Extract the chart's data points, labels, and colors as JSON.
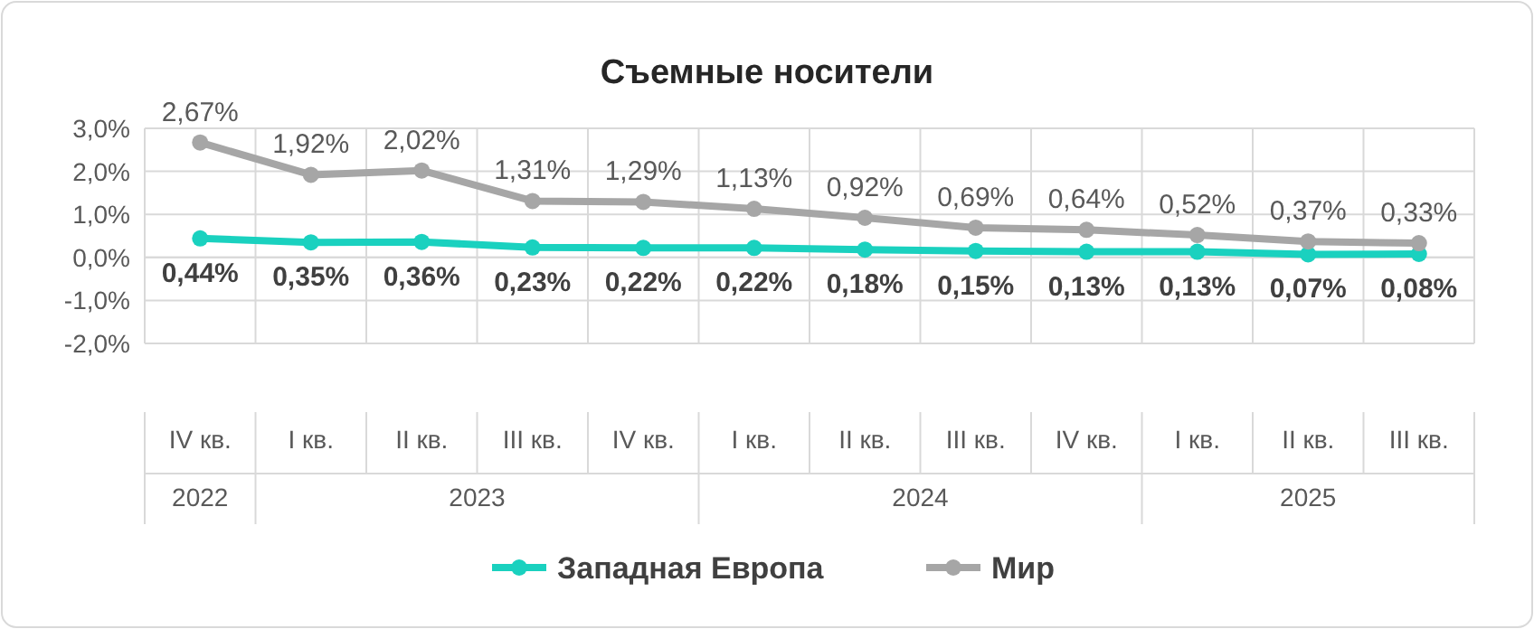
{
  "chart_data": {
    "type": "line",
    "title": "Съемные носители",
    "categories": [
      "IV кв.",
      "I кв.",
      "II кв.",
      "III кв.",
      "IV кв.",
      "I кв.",
      "II кв.",
      "III кв.",
      "IV кв.",
      "I кв.",
      "II кв.",
      "III кв."
    ],
    "annotations": [
      "2022",
      "2023",
      "2024",
      "2025"
    ],
    "series": [
      {
        "name": "Западная Европа",
        "color": "#1ad1bf",
        "values": [
          0.44,
          0.35,
          0.36,
          0.23,
          0.22,
          0.22,
          0.18,
          0.15,
          0.13,
          0.13,
          0.07,
          0.08
        ],
        "value_labels": [
          "0,44%",
          "0,35%",
          "0,36%",
          "0,23%",
          "0,22%",
          "0,22%",
          "0,18%",
          "0,15%",
          "0,13%",
          "0,13%",
          "0,07%",
          "0,08%"
        ]
      },
      {
        "name": "Мир",
        "color": "#a6a6a6",
        "values": [
          2.67,
          1.92,
          2.02,
          1.31,
          1.29,
          1.13,
          0.92,
          0.69,
          0.64,
          0.52,
          0.37,
          0.33
        ],
        "value_labels": [
          "2,67%",
          "1,92%",
          "2,02%",
          "1,31%",
          "1,29%",
          "1,13%",
          "0,92%",
          "0,69%",
          "0,64%",
          "0,52%",
          "0,37%",
          "0,33%"
        ]
      }
    ],
    "ylim": [
      -2,
      3
    ],
    "yticks": [
      {
        "value": -2,
        "label": "-2,0%"
      },
      {
        "value": -1,
        "label": "-1,0%"
      },
      {
        "value": 0,
        "label": "0,0%"
      },
      {
        "value": 1,
        "label": "1,0%"
      },
      {
        "value": 2,
        "label": "2,0%"
      },
      {
        "value": 3,
        "label": "3,0%"
      }
    ],
    "grid": true,
    "legend": "bottom",
    "marker": "circle",
    "line_style": "solid"
  }
}
